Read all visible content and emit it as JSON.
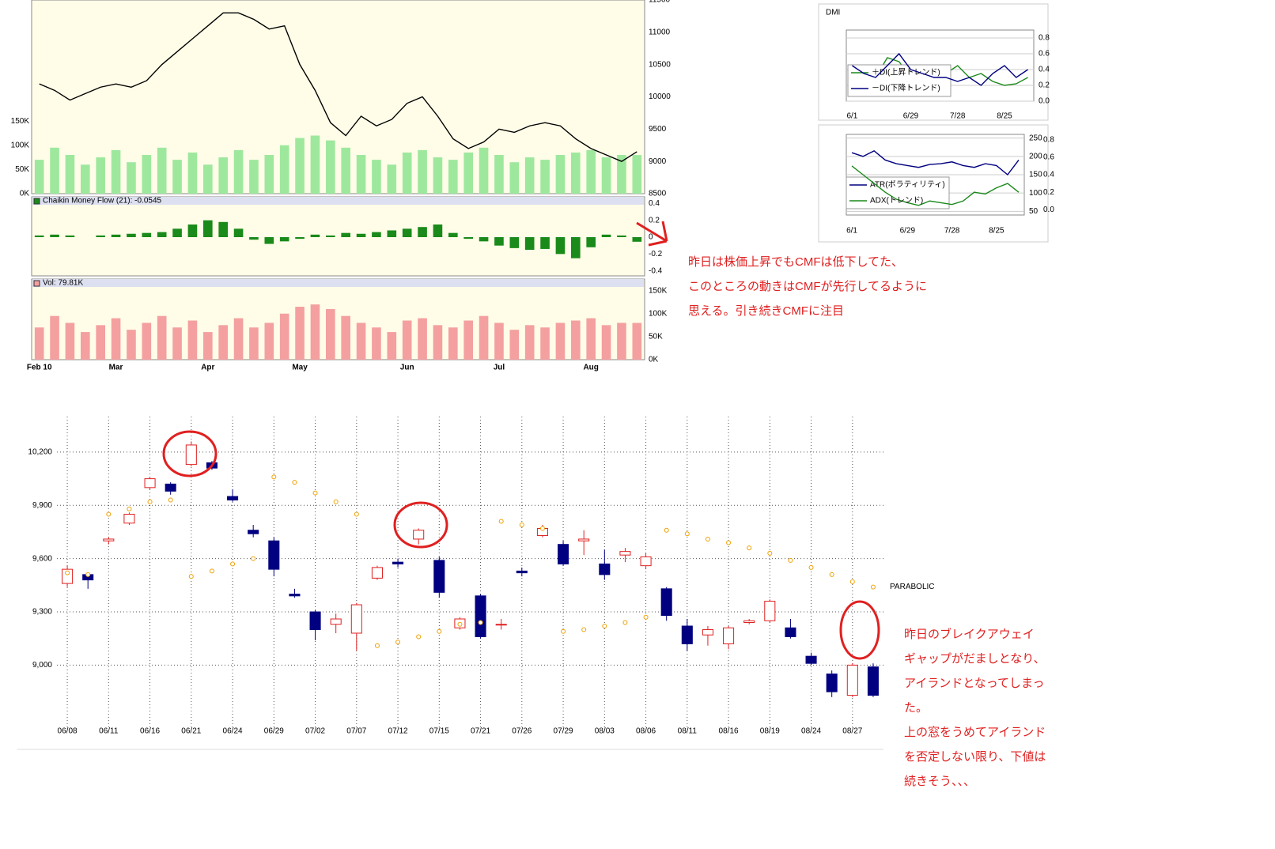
{
  "chart_data": [
    {
      "type": "line",
      "categories": [
        "Feb 10",
        null,
        null,
        null,
        null,
        "Mar",
        null,
        null,
        null,
        null,
        null,
        "Apr",
        null,
        null,
        null,
        null,
        null,
        "May",
        null,
        null,
        null,
        null,
        null,
        null,
        "Jun",
        null,
        null,
        null,
        null,
        null,
        "Jul",
        null,
        null,
        null,
        null,
        null,
        "Aug",
        null,
        null,
        null
      ],
      "values": [
        10200,
        10100,
        9950,
        10050,
        10150,
        10200,
        10150,
        10250,
        10500,
        10700,
        10900,
        11100,
        11300,
        11300,
        11200,
        11050,
        11100,
        10500,
        10100,
        9600,
        9400,
        9700,
        9550,
        9650,
        9900,
        10000,
        9700,
        9350,
        9200,
        9300,
        9500,
        9450,
        9550,
        9600,
        9550,
        9350,
        9200,
        9100,
        9000,
        9150
      ],
      "color": "#000000",
      "ylim": [
        8500,
        11500
      ],
      "yticks": [
        8500,
        9000,
        9500,
        10000,
        10500,
        11000,
        11500
      ],
      "volume": [
        70000,
        95000,
        80000,
        60000,
        75000,
        90000,
        65000,
        80000,
        95000,
        70000,
        85000,
        60000,
        75000,
        90000,
        70000,
        80000,
        100000,
        115000,
        120000,
        110000,
        95000,
        80000,
        70000,
        60000,
        85000,
        90000,
        75000,
        70000,
        85000,
        95000,
        80000,
        65000,
        75000,
        70000,
        80000,
        85000,
        90000,
        75000,
        80000,
        79810
      ],
      "volume_color": "#9ee89e",
      "y2lim": [
        0,
        400000
      ],
      "y2ticks": [
        {
          "value": 0,
          "label": "0K"
        },
        {
          "value": 50000,
          "label": "50K"
        },
        {
          "value": 100000,
          "label": "100K"
        },
        {
          "value": 150000,
          "label": "150K"
        }
      ],
      "annotations": [
        "昨日は株価上昇でもCMFは低下してた、",
        "このところの動きはCMFが先行してるように",
        "思える。引き続きCMFに注目"
      ]
    },
    {
      "type": "bar",
      "title": "Chaikin Money Flow (21): -0.0545",
      "color": "#1a8a1a",
      "values": [
        0.02,
        0.03,
        0.02,
        0.0,
        0.02,
        0.03,
        0.04,
        0.05,
        0.06,
        0.1,
        0.15,
        0.2,
        0.18,
        0.1,
        -0.03,
        -0.08,
        -0.05,
        -0.02,
        0.03,
        0.02,
        0.05,
        0.04,
        0.06,
        0.08,
        0.1,
        0.12,
        0.15,
        0.05,
        -0.02,
        -0.05,
        -0.1,
        -0.13,
        -0.15,
        -0.14,
        -0.2,
        -0.25,
        -0.12,
        0.03,
        0.02,
        -0.0545
      ],
      "ylim": [
        -0.45,
        0.45
      ],
      "yticks": [
        -0.4,
        -0.2,
        0,
        0.2,
        0.4
      ]
    },
    {
      "type": "bar",
      "title": "Vol: 79.81K",
      "color": "#f4a0a0",
      "values": [
        70000,
        95000,
        80000,
        60000,
        75000,
        90000,
        65000,
        80000,
        95000,
        70000,
        85000,
        60000,
        75000,
        90000,
        70000,
        80000,
        100000,
        115000,
        120000,
        110000,
        95000,
        80000,
        70000,
        60000,
        85000,
        90000,
        75000,
        70000,
        85000,
        95000,
        80000,
        65000,
        75000,
        70000,
        80000,
        85000,
        90000,
        75000,
        80000,
        79810
      ],
      "ylim": [
        0,
        170000
      ],
      "yticks": [
        {
          "value": 0,
          "label": "0K"
        },
        {
          "value": 50000,
          "label": "50K"
        },
        {
          "value": 100000,
          "label": "100K"
        },
        {
          "value": 150000,
          "label": "150K"
        }
      ]
    },
    {
      "type": "line",
      "title": "DMI",
      "categories": [
        "6/1",
        null,
        null,
        null,
        null,
        "6/29",
        null,
        null,
        null,
        "7/28",
        null,
        null,
        null,
        "8/25",
        null,
        null
      ],
      "series": [
        {
          "name": "＋DI(上昇トレンド)",
          "color": "#1a8a1a",
          "values": [
            0.2,
            0.25,
            0.3,
            0.55,
            0.5,
            0.3,
            0.2,
            0.25,
            0.35,
            0.45,
            0.3,
            0.35,
            0.25,
            0.2,
            0.22,
            0.3
          ]
        },
        {
          "name": "－DI(下降トレンド)",
          "color": "#000080",
          "values": [
            0.45,
            0.35,
            0.3,
            0.45,
            0.6,
            0.4,
            0.35,
            0.3,
            0.3,
            0.25,
            0.3,
            0.2,
            0.35,
            0.45,
            0.3,
            0.4
          ]
        }
      ],
      "ylim": [
        0,
        0.9
      ],
      "yticks": [
        {
          "value": 0,
          "label": "0.0"
        },
        0.2,
        0.4,
        0.6,
        0.8
      ],
      "grid": true
    },
    {
      "type": "line",
      "categories": [
        "6/1",
        null,
        null,
        null,
        null,
        "6/29",
        null,
        null,
        null,
        "7/28",
        null,
        null,
        null,
        "8/25",
        null,
        null
      ],
      "series": [
        {
          "name": "ATR(ボラティリティ)",
          "color": "#000080",
          "values": [
            210,
            200,
            215,
            190,
            180,
            175,
            170,
            178,
            180,
            185,
            175,
            170,
            180,
            175,
            150,
            190
          ]
        },
        {
          "name": "ADX(トレンド)",
          "color": "#1a8a1a",
          "axis": "y2",
          "values": [
            0.5,
            0.4,
            0.3,
            0.2,
            0.12,
            0.08,
            0.05,
            0.1,
            0.08,
            0.06,
            0.1,
            0.2,
            0.18,
            0.25,
            0.3,
            0.2
          ]
        }
      ],
      "ylim": [
        40,
        260
      ],
      "yticks": [
        50,
        100,
        150,
        200,
        250
      ],
      "y2lim": [
        -0.06,
        0.86
      ],
      "y2ticks": [
        {
          "value": 0,
          "label": "0.0"
        },
        0.2,
        0.4,
        0.6,
        0.8
      ],
      "grid": true
    },
    {
      "type": "candlestick",
      "categories": [
        "06/08",
        null,
        "06/11",
        null,
        "06/16",
        null,
        "06/21",
        null,
        "06/24",
        null,
        "06/29",
        null,
        "07/02",
        null,
        "07/07",
        null,
        "07/12",
        null,
        "07/15",
        null,
        "07/21",
        null,
        "07/26",
        null,
        "07/29",
        null,
        "08/03",
        null,
        "08/06",
        null,
        "08/11",
        null,
        "08/16",
        null,
        "08/19",
        null,
        "08/24",
        null,
        "08/27",
        null
      ],
      "open": [
        9460,
        9510,
        9700,
        9800,
        10000,
        10020,
        10130,
        10140,
        9950,
        9760,
        9700,
        9400,
        9300,
        9230,
        9180,
        9490,
        9580,
        9710,
        9590,
        9210,
        9390,
        9230,
        9530,
        9730,
        9680,
        9700,
        9570,
        9620,
        9560,
        9430,
        9220,
        9170,
        9120,
        9240,
        9250,
        9210,
        9050,
        8950,
        8830,
        8990
      ],
      "high": [
        9560,
        9520,
        9720,
        9860,
        10060,
        10030,
        10260,
        10150,
        9990,
        9790,
        9720,
        9430,
        9310,
        9290,
        9350,
        9560,
        9600,
        9770,
        9610,
        9270,
        9400,
        9260,
        9550,
        9790,
        9700,
        9760,
        9650,
        9660,
        9630,
        9440,
        9260,
        9220,
        9220,
        9260,
        9370,
        9260,
        9070,
        8970,
        9010,
        9010
      ],
      "low": [
        9440,
        9430,
        9680,
        9790,
        9990,
        9960,
        10120,
        10100,
        9920,
        9720,
        9500,
        9380,
        9140,
        9180,
        9080,
        9480,
        9550,
        9680,
        9380,
        9200,
        9150,
        9200,
        9500,
        9720,
        9560,
        9620,
        9480,
        9580,
        9540,
        9250,
        9080,
        9110,
        9090,
        9230,
        9240,
        9150,
        9000,
        8820,
        8820,
        8820
      ],
      "close": [
        9540,
        9480,
        9710,
        9850,
        10050,
        9980,
        10240,
        10110,
        9930,
        9740,
        9540,
        9390,
        9200,
        9260,
        9340,
        9550,
        9570,
        9760,
        9410,
        9260,
        9160,
        9230,
        9520,
        9770,
        9570,
        9710,
        9510,
        9640,
        9610,
        9280,
        9120,
        9200,
        9210,
        9250,
        9360,
        9160,
        9010,
        8850,
        9000,
        8830
      ],
      "up_color": "#e02020",
      "down_color": "#000080",
      "indicator": {
        "name": "PARABOLIC",
        "color": "#f0a000",
        "values": [
          9520,
          9510,
          9850,
          9880,
          9920,
          9930,
          9500,
          9530,
          9570,
          9600,
          10060,
          10030,
          9970,
          9920,
          9850,
          9110,
          9130,
          9160,
          9190,
          9230,
          9240,
          9810,
          9790,
          9770,
          9190,
          9200,
          9220,
          9240,
          9270,
          9760,
          9740,
          9710,
          9690,
          9660,
          9630,
          9590,
          9550,
          9510,
          9470,
          9440
        ]
      },
      "ylim": [
        8650,
        10400
      ],
      "yticks": [
        {
          "value": 9000,
          "label": "9,000"
        },
        {
          "value": 9300,
          "label": "9,300"
        },
        {
          "value": 9600,
          "label": "9,600"
        },
        {
          "value": 9900,
          "label": "9,900"
        },
        {
          "value": 10200,
          "label": "10,200"
        }
      ],
      "grid": true,
      "annotations": [
        "昨日のブレイクアウェイ",
        "ギャップがだましとなり、",
        "アイランドとなってしまっ",
        "た。",
        "上の窓をうめてアイランド",
        "を否定しない限り、下値は",
        "続きそう、、、"
      ]
    }
  ]
}
